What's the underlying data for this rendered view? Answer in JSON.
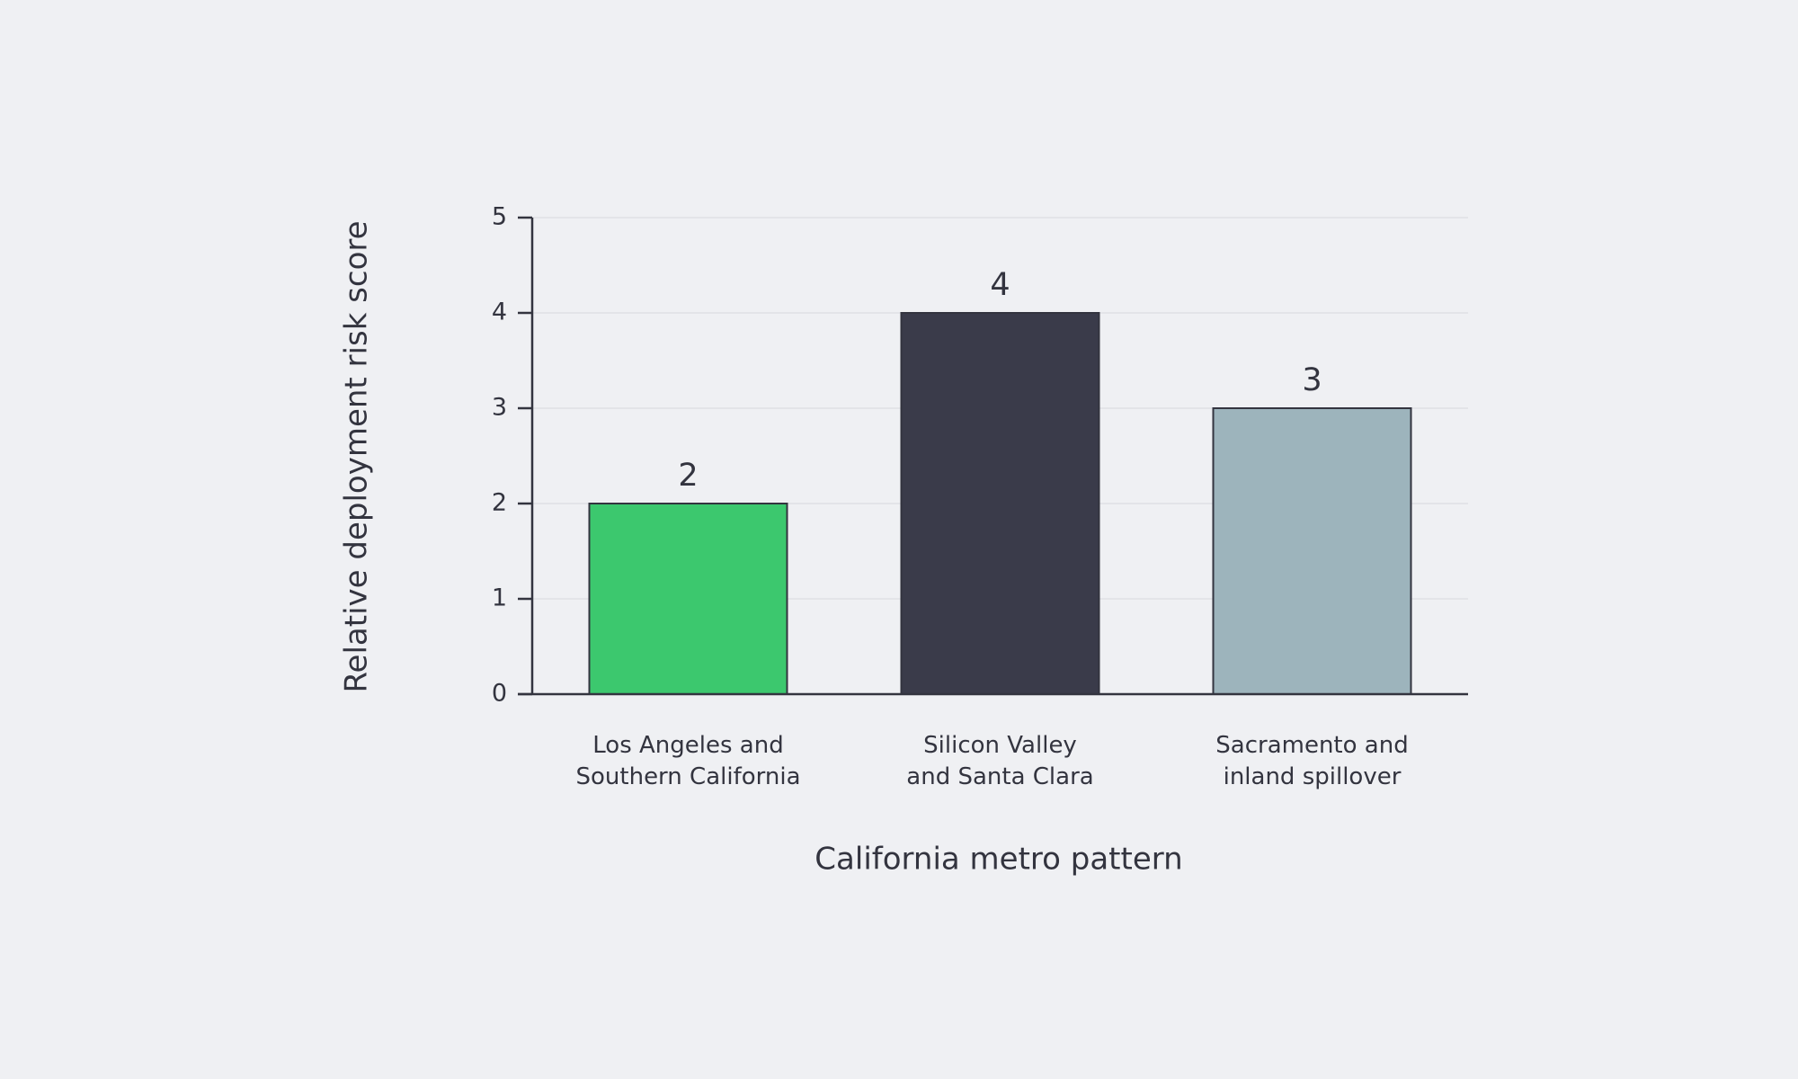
{
  "chart_data": {
    "type": "bar",
    "categories": [
      "Los Angeles and\nSouthern California",
      "Silicon Valley\nand Santa Clara",
      "Sacramento and\ninland spillover"
    ],
    "values": [
      2,
      4,
      3
    ],
    "colors": [
      "#3cc86e",
      "#3a3b4a",
      "#9db4bc"
    ],
    "xlabel": "California metro pattern",
    "ylabel": "Relative deployment risk score",
    "ylim": [
      0,
      5
    ],
    "yticks": [
      0,
      1,
      2,
      3,
      4,
      5
    ],
    "grid": true
  }
}
